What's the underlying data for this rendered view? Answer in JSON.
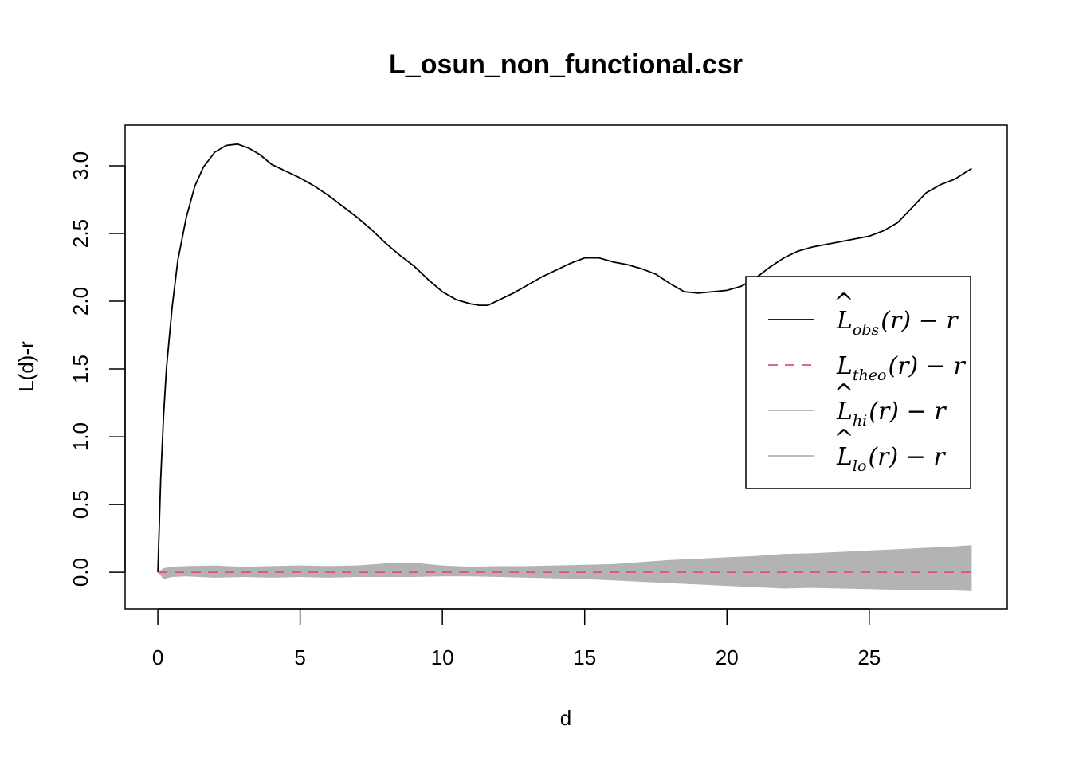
{
  "chart_data": {
    "type": "line",
    "title": "L_osun_non_functional.csr",
    "xlabel": "d",
    "ylabel": "L(d)-r",
    "xlim": [
      -1.15,
      29.85
    ],
    "ylim": [
      -0.27,
      3.3
    ],
    "x_ticks": [
      0,
      5,
      10,
      15,
      20,
      25
    ],
    "y_ticks": [
      0.0,
      0.5,
      1.0,
      1.5,
      2.0,
      2.5,
      3.0
    ],
    "x_tick_labels": [
      "0",
      "5",
      "10",
      "15",
      "20",
      "25"
    ],
    "y_tick_labels": [
      "0.0",
      "0.5",
      "1.0",
      "1.5",
      "2.0",
      "2.5",
      "3.0"
    ],
    "grid": false,
    "legend_position": "right",
    "colors": {
      "obs": "#000000",
      "theo": "#DF536B",
      "envelope": "#B3B3B3",
      "axis": "#000000"
    },
    "series": [
      {
        "name": "L_obs(r) - r",
        "style": "solid",
        "x": [
          0,
          0.1,
          0.2,
          0.3,
          0.5,
          0.7,
          1.0,
          1.3,
          1.6,
          2.0,
          2.4,
          2.8,
          3.2,
          3.6,
          4.0,
          4.5,
          5.0,
          5.5,
          6.0,
          6.5,
          7.0,
          7.5,
          8.0,
          8.5,
          9.0,
          9.5,
          10.0,
          10.5,
          11.0,
          11.3,
          11.6,
          12.0,
          12.5,
          13.0,
          13.5,
          14.0,
          14.5,
          15.0,
          15.5,
          16.0,
          16.5,
          17.0,
          17.5,
          18.0,
          18.5,
          19.0,
          19.5,
          20.0,
          20.5,
          21.0,
          21.5,
          22.0,
          22.5,
          23.0,
          23.5,
          24.0,
          24.5,
          25.0,
          25.5,
          26.0,
          26.5,
          27.0,
          27.5,
          28.0,
          28.6
        ],
        "y": [
          0.0,
          0.68,
          1.15,
          1.5,
          1.95,
          2.3,
          2.62,
          2.85,
          2.99,
          3.1,
          3.15,
          3.16,
          3.13,
          3.08,
          3.01,
          2.96,
          2.91,
          2.85,
          2.78,
          2.7,
          2.62,
          2.53,
          2.43,
          2.34,
          2.26,
          2.16,
          2.07,
          2.01,
          1.98,
          1.97,
          1.97,
          2.01,
          2.06,
          2.12,
          2.18,
          2.23,
          2.28,
          2.32,
          2.32,
          2.29,
          2.27,
          2.24,
          2.2,
          2.13,
          2.07,
          2.06,
          2.07,
          2.08,
          2.11,
          2.17,
          2.25,
          2.32,
          2.37,
          2.4,
          2.42,
          2.44,
          2.46,
          2.48,
          2.52,
          2.58,
          2.69,
          2.8,
          2.86,
          2.9,
          2.98
        ]
      },
      {
        "name": "L_theo(r) - r",
        "style": "dashed",
        "x": [
          0,
          28.6
        ],
        "y": [
          0,
          0
        ]
      }
    ],
    "envelope": {
      "x": [
        0,
        0.2,
        0.5,
        1,
        2,
        3,
        4,
        5,
        6,
        7,
        8,
        9,
        10,
        11,
        12,
        13,
        14,
        15,
        16,
        17,
        18,
        19,
        20,
        21,
        22,
        23,
        24,
        25,
        26,
        27,
        28,
        28.6
      ],
      "hi": [
        0.0,
        0.03,
        0.04,
        0.045,
        0.05,
        0.04,
        0.045,
        0.05,
        0.045,
        0.05,
        0.065,
        0.07,
        0.05,
        0.04,
        0.045,
        0.045,
        0.05,
        0.055,
        0.06,
        0.075,
        0.09,
        0.1,
        0.11,
        0.12,
        0.135,
        0.14,
        0.15,
        0.16,
        0.17,
        0.18,
        0.19,
        0.2
      ],
      "lo": [
        0.0,
        -0.05,
        -0.035,
        -0.03,
        -0.04,
        -0.035,
        -0.04,
        -0.035,
        -0.04,
        -0.035,
        -0.035,
        -0.035,
        -0.03,
        -0.03,
        -0.035,
        -0.04,
        -0.045,
        -0.05,
        -0.06,
        -0.07,
        -0.08,
        -0.09,
        -0.1,
        -0.11,
        -0.12,
        -0.115,
        -0.12,
        -0.125,
        -0.13,
        -0.13,
        -0.135,
        -0.14
      ]
    },
    "legend": {
      "entries": [
        {
          "main": "L",
          "hat": true,
          "sub": "obs",
          "tail": "(r) − r",
          "style": "solid",
          "color_key": "obs"
        },
        {
          "main": "L",
          "hat": false,
          "sub": "theo",
          "tail": "(r) − r",
          "style": "dashed",
          "color_key": "theo"
        },
        {
          "main": "L",
          "hat": true,
          "sub": "hi",
          "tail": "(r) − r",
          "style": "solid",
          "color_key": "envelope"
        },
        {
          "main": "L",
          "hat": true,
          "sub": "lo",
          "tail": "(r) − r",
          "style": "solid",
          "color_key": "envelope"
        }
      ]
    }
  }
}
